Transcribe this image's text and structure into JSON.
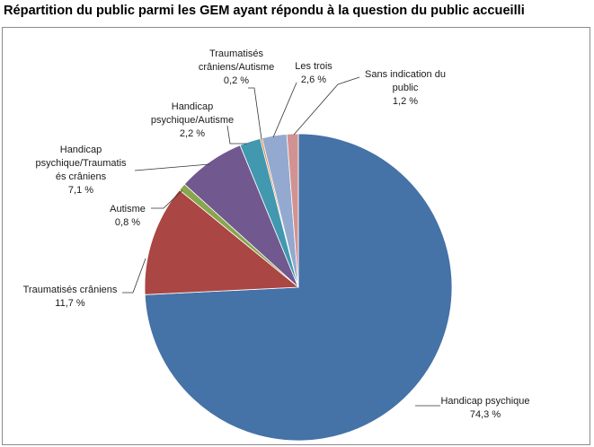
{
  "page_title": "Répartition du public parmi les GEM ayant répondu à la question du public accueilli",
  "chart_data": {
    "type": "pie",
    "title": "",
    "legend": "none",
    "data_labels": true,
    "slices": [
      {
        "name": "Handicap psychique",
        "value": 74.3,
        "value_label": "74,3 %",
        "color": "#4572a7",
        "label_lines": [
          "Handicap psychique"
        ]
      },
      {
        "name": "Traumatisés crâniens",
        "value": 11.7,
        "value_label": "11,7 %",
        "color": "#aa4643",
        "label_lines": [
          "Traumatisés crâniens"
        ]
      },
      {
        "name": "Autisme",
        "value": 0.8,
        "value_label": "0,8 %",
        "color": "#89a54e",
        "label_lines": [
          "Autisme"
        ]
      },
      {
        "name": "Handicap psychique/Traumatisés crâniens",
        "value": 7.1,
        "value_label": "7,1 %",
        "color": "#71588f",
        "label_lines": [
          "Handicap",
          "psychique/Traumatis",
          "és crâniens"
        ]
      },
      {
        "name": "Handicap psychique/Autisme",
        "value": 2.2,
        "value_label": "2,2 %",
        "color": "#4198af",
        "label_lines": [
          "Handicap",
          "psychique/Autisme"
        ]
      },
      {
        "name": "Traumatisés crâniens/Autisme",
        "value": 0.2,
        "value_label": "0,2 %",
        "color": "#db843d",
        "label_lines": [
          "Traumatisés",
          "crâniens/Autisme"
        ]
      },
      {
        "name": "Les trois",
        "value": 2.6,
        "value_label": "2,6 %",
        "color": "#93a9cf",
        "label_lines": [
          "Les trois"
        ]
      },
      {
        "name": "Sans indication du public",
        "value": 1.2,
        "value_label": "1,2 %",
        "color": "#d19392",
        "label_lines": [
          "Sans indication du",
          "public"
        ]
      }
    ]
  }
}
